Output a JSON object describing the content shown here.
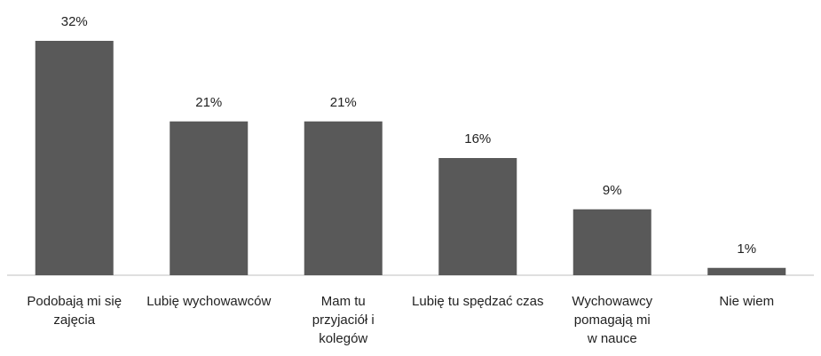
{
  "chart_data": {
    "type": "bar",
    "categories": [
      "Podobają mi się zajęcia",
      "Lubię wychowawców",
      "Mam tu przyjaciół i kolegów",
      "Lubię tu spędzać czas",
      "Wychowawcy pomagają mi w nauce",
      "Nie wiem"
    ],
    "values": [
      32,
      21,
      21,
      16,
      9,
      1
    ],
    "value_labels": [
      "32%",
      "21%",
      "21%",
      "16%",
      "9%",
      "1%"
    ],
    "color": "#595959"
  }
}
